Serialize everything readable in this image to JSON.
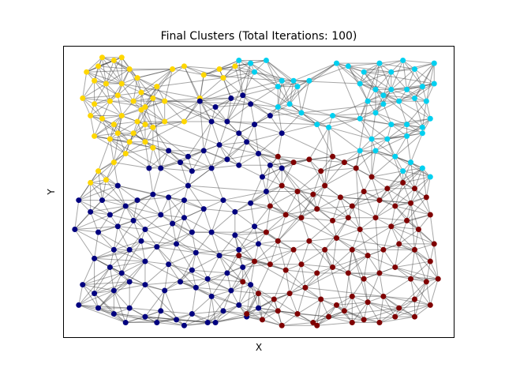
{
  "chart_data": {
    "type": "scatter",
    "title": "Final Clusters (Total Iterations: 100)",
    "xlabel": "X",
    "ylabel": "Y",
    "xlim": [
      0,
      1
    ],
    "ylim": [
      0,
      1
    ],
    "grid": false,
    "ticks": false,
    "edge_color": "#3c3c3c",
    "edge_description": "dense k-nearest-neighbour style graph edges between points",
    "series": [
      {
        "color": "#ffd700",
        "points": [
          [
            0.06,
            0.91
          ],
          [
            0.09,
            0.93
          ],
          [
            0.1,
            0.96
          ],
          [
            0.13,
            0.95
          ],
          [
            0.15,
            0.96
          ],
          [
            0.17,
            0.92
          ],
          [
            0.19,
            0.89
          ],
          [
            0.08,
            0.88
          ],
          [
            0.11,
            0.87
          ],
          [
            0.15,
            0.87
          ],
          [
            0.2,
            0.84
          ],
          [
            0.24,
            0.86
          ],
          [
            0.05,
            0.82
          ],
          [
            0.08,
            0.8
          ],
          [
            0.12,
            0.81
          ],
          [
            0.14,
            0.83
          ],
          [
            0.18,
            0.81
          ],
          [
            0.21,
            0.79
          ],
          [
            0.23,
            0.82
          ],
          [
            0.07,
            0.76
          ],
          [
            0.1,
            0.75
          ],
          [
            0.13,
            0.73
          ],
          [
            0.15,
            0.76
          ],
          [
            0.19,
            0.74
          ],
          [
            0.21,
            0.73
          ],
          [
            0.23,
            0.72
          ],
          [
            0.26,
            0.74
          ],
          [
            0.08,
            0.69
          ],
          [
            0.12,
            0.68
          ],
          [
            0.14,
            0.7
          ],
          [
            0.18,
            0.7
          ],
          [
            0.21,
            0.67
          ],
          [
            0.23,
            0.65
          ],
          [
            0.16,
            0.63
          ],
          [
            0.13,
            0.6
          ],
          [
            0.09,
            0.57
          ],
          [
            0.07,
            0.53
          ],
          [
            0.11,
            0.54
          ],
          [
            0.26,
            0.81
          ],
          [
            0.28,
            0.92
          ],
          [
            0.31,
            0.93
          ],
          [
            0.36,
            0.9
          ],
          [
            0.4,
            0.92
          ],
          [
            0.44,
            0.93
          ],
          [
            0.41,
            0.89
          ],
          [
            0.35,
            0.82
          ],
          [
            0.31,
            0.74
          ],
          [
            0.2,
            0.78
          ],
          [
            0.17,
            0.67
          ]
        ]
      },
      {
        "color": "#00d0f0",
        "points": [
          [
            0.45,
            0.95
          ],
          [
            0.48,
            0.94
          ],
          [
            0.52,
            0.95
          ],
          [
            0.49,
            0.91
          ],
          [
            0.55,
            0.86
          ],
          [
            0.56,
            0.88
          ],
          [
            0.59,
            0.88
          ],
          [
            0.63,
            0.88
          ],
          [
            0.6,
            0.86
          ],
          [
            0.55,
            0.79
          ],
          [
            0.58,
            0.8
          ],
          [
            0.61,
            0.77
          ],
          [
            0.65,
            0.73
          ],
          [
            0.68,
            0.72
          ],
          [
            0.69,
            0.76
          ],
          [
            0.7,
            0.94
          ],
          [
            0.73,
            0.93
          ],
          [
            0.77,
            0.91
          ],
          [
            0.81,
            0.94
          ],
          [
            0.84,
            0.91
          ],
          [
            0.87,
            0.95
          ],
          [
            0.9,
            0.92
          ],
          [
            0.95,
            0.94
          ],
          [
            0.76,
            0.87
          ],
          [
            0.8,
            0.85
          ],
          [
            0.84,
            0.85
          ],
          [
            0.88,
            0.85
          ],
          [
            0.92,
            0.86
          ],
          [
            0.95,
            0.87
          ],
          [
            0.78,
            0.81
          ],
          [
            0.82,
            0.8
          ],
          [
            0.86,
            0.81
          ],
          [
            0.9,
            0.82
          ],
          [
            0.93,
            0.81
          ],
          [
            0.94,
            0.75
          ],
          [
            0.76,
            0.75
          ],
          [
            0.8,
            0.77
          ],
          [
            0.84,
            0.73
          ],
          [
            0.88,
            0.73
          ],
          [
            0.92,
            0.72
          ],
          [
            0.79,
            0.68
          ],
          [
            0.83,
            0.68
          ],
          [
            0.88,
            0.69
          ],
          [
            0.92,
            0.7
          ],
          [
            0.76,
            0.64
          ],
          [
            0.8,
            0.64
          ],
          [
            0.85,
            0.62
          ],
          [
            0.89,
            0.6
          ],
          [
            0.92,
            0.58
          ],
          [
            0.94,
            0.55
          ],
          [
            0.87,
            0.57
          ],
          [
            0.82,
            0.83
          ]
        ]
      },
      {
        "color": "#00007f",
        "points": [
          [
            0.35,
            0.81
          ],
          [
            0.39,
            0.79
          ],
          [
            0.43,
            0.82
          ],
          [
            0.46,
            0.83
          ],
          [
            0.48,
            0.8
          ],
          [
            0.38,
            0.74
          ],
          [
            0.42,
            0.74
          ],
          [
            0.45,
            0.7
          ],
          [
            0.49,
            0.73
          ],
          [
            0.53,
            0.76
          ],
          [
            0.56,
            0.7
          ],
          [
            0.47,
            0.67
          ],
          [
            0.4,
            0.66
          ],
          [
            0.36,
            0.64
          ],
          [
            0.32,
            0.62
          ],
          [
            0.27,
            0.64
          ],
          [
            0.25,
            0.58
          ],
          [
            0.22,
            0.58
          ],
          [
            0.3,
            0.6
          ],
          [
            0.33,
            0.57
          ],
          [
            0.38,
            0.58
          ],
          [
            0.42,
            0.61
          ],
          [
            0.45,
            0.59
          ],
          [
            0.5,
            0.63
          ],
          [
            0.53,
            0.59
          ],
          [
            0.56,
            0.58
          ],
          [
            0.51,
            0.55
          ],
          [
            0.14,
            0.52
          ],
          [
            0.1,
            0.47
          ],
          [
            0.04,
            0.47
          ],
          [
            0.07,
            0.43
          ],
          [
            0.12,
            0.42
          ],
          [
            0.16,
            0.45
          ],
          [
            0.19,
            0.47
          ],
          [
            0.23,
            0.49
          ],
          [
            0.27,
            0.48
          ],
          [
            0.31,
            0.47
          ],
          [
            0.32,
            0.52
          ],
          [
            0.36,
            0.44
          ],
          [
            0.41,
            0.47
          ],
          [
            0.44,
            0.43
          ],
          [
            0.48,
            0.46
          ],
          [
            0.52,
            0.5
          ],
          [
            0.03,
            0.37
          ],
          [
            0.09,
            0.36
          ],
          [
            0.14,
            0.38
          ],
          [
            0.18,
            0.4
          ],
          [
            0.21,
            0.37
          ],
          [
            0.25,
            0.42
          ],
          [
            0.28,
            0.39
          ],
          [
            0.31,
            0.41
          ],
          [
            0.33,
            0.36
          ],
          [
            0.38,
            0.36
          ],
          [
            0.44,
            0.35
          ],
          [
            0.49,
            0.38
          ],
          [
            0.13,
            0.3
          ],
          [
            0.17,
            0.3
          ],
          [
            0.2,
            0.33
          ],
          [
            0.24,
            0.31
          ],
          [
            0.29,
            0.32
          ],
          [
            0.34,
            0.29
          ],
          [
            0.4,
            0.28
          ],
          [
            0.45,
            0.3
          ],
          [
            0.5,
            0.32
          ],
          [
            0.08,
            0.27
          ],
          [
            0.12,
            0.24
          ],
          [
            0.15,
            0.22
          ],
          [
            0.21,
            0.26
          ],
          [
            0.27,
            0.25
          ],
          [
            0.33,
            0.23
          ],
          [
            0.37,
            0.2
          ],
          [
            0.42,
            0.22
          ],
          [
            0.46,
            0.24
          ],
          [
            0.05,
            0.18
          ],
          [
            0.08,
            0.15
          ],
          [
            0.13,
            0.16
          ],
          [
            0.17,
            0.19
          ],
          [
            0.21,
            0.18
          ],
          [
            0.26,
            0.16
          ],
          [
            0.3,
            0.19
          ],
          [
            0.34,
            0.17
          ],
          [
            0.38,
            0.14
          ],
          [
            0.43,
            0.16
          ],
          [
            0.48,
            0.18
          ],
          [
            0.04,
            0.11
          ],
          [
            0.09,
            0.1
          ],
          [
            0.13,
            0.08
          ],
          [
            0.17,
            0.1
          ],
          [
            0.21,
            0.07
          ],
          [
            0.25,
            0.09
          ],
          [
            0.29,
            0.06
          ],
          [
            0.33,
            0.08
          ],
          [
            0.37,
            0.05
          ],
          [
            0.41,
            0.09
          ],
          [
            0.45,
            0.11
          ],
          [
            0.5,
            0.1
          ],
          [
            0.16,
            0.05
          ],
          [
            0.24,
            0.05
          ],
          [
            0.31,
            0.04
          ],
          [
            0.39,
            0.05
          ],
          [
            0.47,
            0.07
          ]
        ]
      },
      {
        "color": "#7f0000",
        "points": [
          [
            0.55,
            0.62
          ],
          [
            0.59,
            0.6
          ],
          [
            0.63,
            0.61
          ],
          [
            0.66,
            0.57
          ],
          [
            0.69,
            0.62
          ],
          [
            0.72,
            0.6
          ],
          [
            0.75,
            0.58
          ],
          [
            0.79,
            0.55
          ],
          [
            0.83,
            0.51
          ],
          [
            0.87,
            0.53
          ],
          [
            0.9,
            0.51
          ],
          [
            0.93,
            0.48
          ],
          [
            0.56,
            0.52
          ],
          [
            0.6,
            0.5
          ],
          [
            0.64,
            0.49
          ],
          [
            0.67,
            0.52
          ],
          [
            0.71,
            0.48
          ],
          [
            0.74,
            0.45
          ],
          [
            0.77,
            0.5
          ],
          [
            0.81,
            0.47
          ],
          [
            0.85,
            0.45
          ],
          [
            0.89,
            0.46
          ],
          [
            0.94,
            0.42
          ],
          [
            0.53,
            0.45
          ],
          [
            0.57,
            0.42
          ],
          [
            0.61,
            0.41
          ],
          [
            0.65,
            0.44
          ],
          [
            0.69,
            0.4
          ],
          [
            0.73,
            0.41
          ],
          [
            0.76,
            0.37
          ],
          [
            0.8,
            0.41
          ],
          [
            0.84,
            0.38
          ],
          [
            0.88,
            0.4
          ],
          [
            0.91,
            0.37
          ],
          [
            0.95,
            0.32
          ],
          [
            0.52,
            0.36
          ],
          [
            0.55,
            0.33
          ],
          [
            0.59,
            0.3
          ],
          [
            0.63,
            0.33
          ],
          [
            0.67,
            0.3
          ],
          [
            0.7,
            0.34
          ],
          [
            0.74,
            0.3
          ],
          [
            0.78,
            0.28
          ],
          [
            0.82,
            0.3
          ],
          [
            0.86,
            0.32
          ],
          [
            0.9,
            0.3
          ],
          [
            0.94,
            0.26
          ],
          [
            0.45,
            0.28
          ],
          [
            0.49,
            0.26
          ],
          [
            0.53,
            0.25
          ],
          [
            0.57,
            0.23
          ],
          [
            0.61,
            0.25
          ],
          [
            0.65,
            0.22
          ],
          [
            0.69,
            0.24
          ],
          [
            0.73,
            0.22
          ],
          [
            0.77,
            0.2
          ],
          [
            0.81,
            0.22
          ],
          [
            0.85,
            0.24
          ],
          [
            0.89,
            0.2
          ],
          [
            0.93,
            0.19
          ],
          [
            0.96,
            0.2
          ],
          [
            0.46,
            0.19
          ],
          [
            0.5,
            0.15
          ],
          [
            0.54,
            0.13
          ],
          [
            0.58,
            0.15
          ],
          [
            0.62,
            0.17
          ],
          [
            0.66,
            0.13
          ],
          [
            0.7,
            0.11
          ],
          [
            0.74,
            0.14
          ],
          [
            0.78,
            0.12
          ],
          [
            0.82,
            0.14
          ],
          [
            0.86,
            0.1
          ],
          [
            0.9,
            0.13
          ],
          [
            0.94,
            0.11
          ],
          [
            0.47,
            0.08
          ],
          [
            0.51,
            0.06
          ],
          [
            0.55,
            0.09
          ],
          [
            0.6,
            0.08
          ],
          [
            0.64,
            0.05
          ],
          [
            0.68,
            0.07
          ],
          [
            0.72,
            0.09
          ],
          [
            0.77,
            0.06
          ],
          [
            0.81,
            0.05
          ],
          [
            0.85,
            0.07
          ],
          [
            0.9,
            0.07
          ],
          [
            0.56,
            0.04
          ],
          [
            0.65,
            0.04
          ],
          [
            0.74,
            0.05
          ]
        ]
      }
    ]
  }
}
